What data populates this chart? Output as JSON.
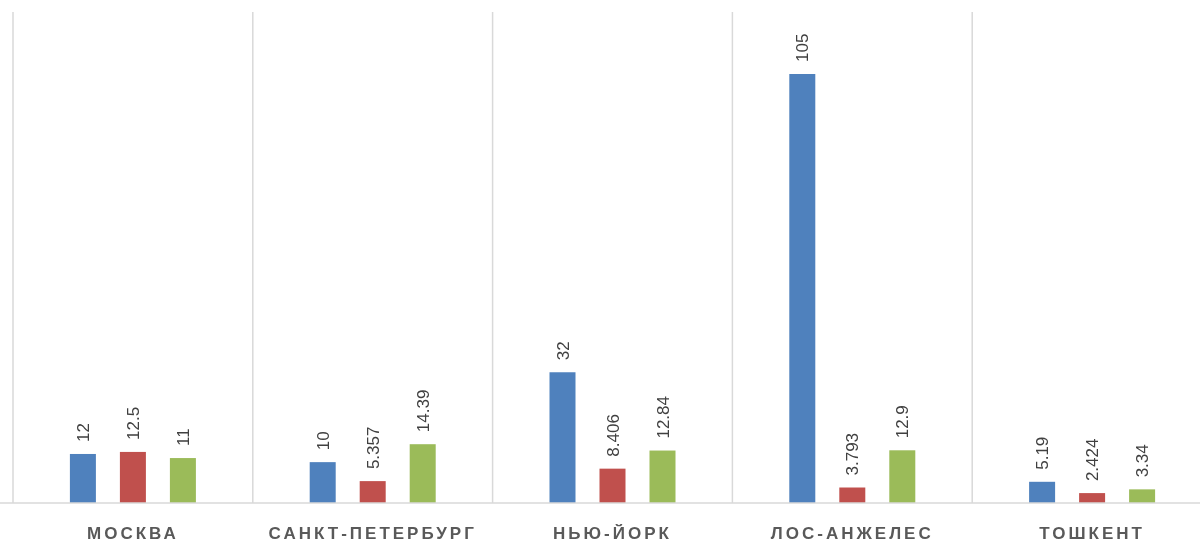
{
  "chart_data": {
    "type": "bar",
    "categories": [
      "МОСКВА",
      "САНКТ-ПЕТЕРБУРГ",
      "НЬЮ-ЙОРК",
      "ЛОС-АНЖЕЛЕС",
      "ТОШКЕНТ"
    ],
    "series": [
      {
        "color": "#4f81bd",
        "values": [
          12,
          10,
          32,
          105,
          5.19
        ]
      },
      {
        "color": "#c0504d",
        "values": [
          12.5,
          5.357,
          8.406,
          3.793,
          2.424
        ]
      },
      {
        "color": "#9bbb59",
        "values": [
          11,
          14.39,
          12.84,
          12.9,
          3.34
        ]
      }
    ],
    "data_labels": true,
    "grid": "x"
  }
}
